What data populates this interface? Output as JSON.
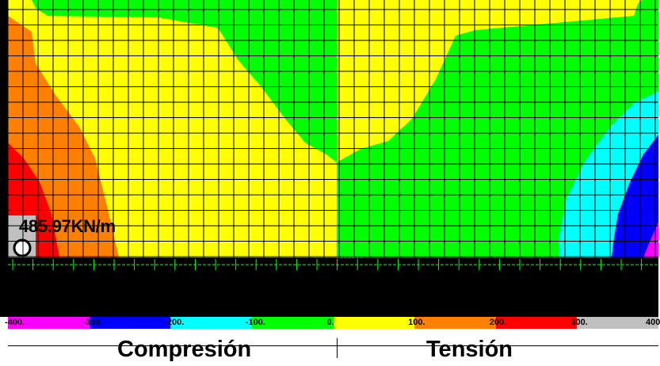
{
  "diagram": {
    "value_label": "485.97KN/m",
    "legend_ticks": [
      "-400.",
      "-300.",
      "-200.",
      "-100.",
      "0.",
      "100.",
      "200.",
      "300.",
      "400"
    ],
    "legend_colors": [
      "#ff00ff",
      "#0000ff",
      "#00ffff",
      "#00ff00",
      "#ffff00",
      "#ff8000",
      "#ff0000",
      "#c0c0c0"
    ],
    "region_labels": {
      "left": "Compresión",
      "right": "Tensión"
    }
  }
}
